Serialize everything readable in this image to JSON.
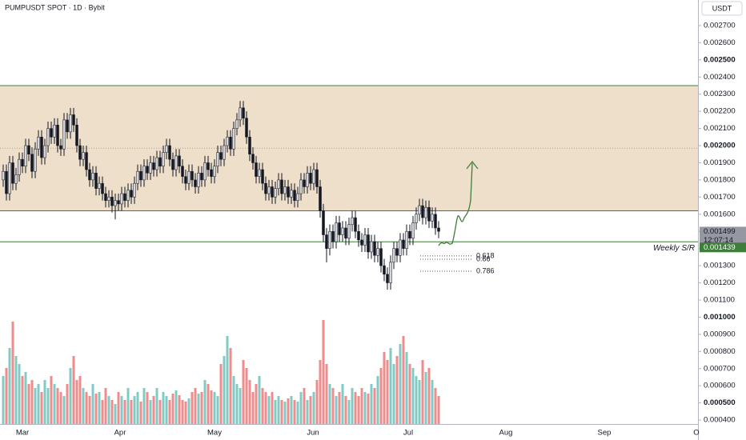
{
  "chart_data": {
    "type": "candlestick",
    "title": "PUMPUSDT SPOT · 1D · Bybit",
    "quote_label": "USDT",
    "open": [
      0.0018,
      0.00185,
      0.00172,
      0.0019,
      0.00178,
      0.00183,
      0.00192,
      0.00188,
      0.002,
      0.00195,
      0.00185,
      0.00198,
      0.00205,
      0.00193,
      0.002,
      0.0021,
      0.00205,
      0.00212,
      0.002,
      0.00198,
      0.00215,
      0.00208,
      0.00218,
      0.00212,
      0.002,
      0.00192,
      0.00196,
      0.00186,
      0.0018,
      0.00184,
      0.00175,
      0.00178,
      0.00172,
      0.00168,
      0.0017,
      0.00165,
      0.00168,
      0.00166,
      0.00172,
      0.00168,
      0.00174,
      0.0017,
      0.00178,
      0.00185,
      0.0018,
      0.00188,
      0.00184,
      0.0019,
      0.00186,
      0.00193,
      0.00188,
      0.00196,
      0.002,
      0.00192,
      0.00186,
      0.00194,
      0.00188,
      0.00182,
      0.00178,
      0.00185,
      0.0018,
      0.00176,
      0.00184,
      0.0018,
      0.0019,
      0.00186,
      0.00182,
      0.00188,
      0.00196,
      0.00192,
      0.002,
      0.00205,
      0.00198,
      0.0021,
      0.00215,
      0.00222,
      0.00216,
      0.00205,
      0.00195,
      0.0019,
      0.00182,
      0.00186,
      0.00178,
      0.00172,
      0.00176,
      0.0017,
      0.00175,
      0.0018,
      0.00172,
      0.00176,
      0.0017,
      0.00174,
      0.00168,
      0.00172,
      0.0018,
      0.00176,
      0.00184,
      0.00178,
      0.00186,
      0.00176,
      0.00162,
      0.00148,
      0.0014,
      0.0015,
      0.00144,
      0.00155,
      0.00148,
      0.00152,
      0.00146,
      0.00154,
      0.00158,
      0.0015,
      0.00145,
      0.00142,
      0.00148,
      0.00138,
      0.00144,
      0.00136,
      0.0014,
      0.0013,
      0.00125,
      0.0012,
      0.00132,
      0.0014,
      0.00136,
      0.00145,
      0.0014,
      0.0015,
      0.00146,
      0.00155,
      0.0016,
      0.00165,
      0.00158,
      0.00164,
      0.00156,
      0.0016,
      0.00152
    ],
    "high": [
      0.00189,
      0.00189,
      0.00194,
      0.00194,
      0.00187,
      0.00196,
      0.00196,
      0.00204,
      0.00204,
      0.00199,
      0.00202,
      0.00209,
      0.00209,
      0.00204,
      0.00214,
      0.00214,
      0.00216,
      0.00216,
      0.00204,
      0.00219,
      0.00219,
      0.00222,
      0.00222,
      0.00216,
      0.00204,
      0.002,
      0.002,
      0.0019,
      0.00188,
      0.00188,
      0.00182,
      0.00182,
      0.00176,
      0.00174,
      0.00174,
      0.00172,
      0.00172,
      0.00176,
      0.00176,
      0.00178,
      0.00178,
      0.00182,
      0.00189,
      0.00189,
      0.00192,
      0.00192,
      0.00194,
      0.00194,
      0.00197,
      0.00197,
      0.002,
      0.00204,
      0.00204,
      0.00196,
      0.00198,
      0.00198,
      0.00192,
      0.00186,
      0.00189,
      0.00189,
      0.00184,
      0.00188,
      0.00188,
      0.00194,
      0.00194,
      0.0019,
      0.00192,
      0.002,
      0.002,
      0.00204,
      0.00209,
      0.00209,
      0.00214,
      0.00219,
      0.00226,
      0.00226,
      0.0022,
      0.00209,
      0.00199,
      0.00194,
      0.0019,
      0.0019,
      0.00182,
      0.0018,
      0.0018,
      0.00179,
      0.00184,
      0.00184,
      0.0018,
      0.0018,
      0.00178,
      0.00178,
      0.00176,
      0.00184,
      0.00184,
      0.00188,
      0.00188,
      0.0019,
      0.0019,
      0.0018,
      0.00166,
      0.00152,
      0.00154,
      0.00154,
      0.00159,
      0.00159,
      0.00156,
      0.00156,
      0.00158,
      0.00162,
      0.00162,
      0.00154,
      0.00149,
      0.00152,
      0.00152,
      0.00148,
      0.00148,
      0.00144,
      0.00144,
      0.00134,
      0.00129,
      0.00136,
      0.00144,
      0.00144,
      0.00149,
      0.00149,
      0.00154,
      0.00154,
      0.00159,
      0.00164,
      0.00169,
      0.00169,
      0.00168,
      0.00168,
      0.00164,
      0.00164,
      0.00156
    ],
    "low": [
      0.00176,
      0.00168,
      0.00168,
      0.00174,
      0.00174,
      0.00179,
      0.00184,
      0.00184,
      0.00191,
      0.00181,
      0.00181,
      0.00194,
      0.00189,
      0.00189,
      0.00196,
      0.00201,
      0.00201,
      0.00196,
      0.00194,
      0.00194,
      0.00204,
      0.00204,
      0.00208,
      0.00196,
      0.00188,
      0.00188,
      0.00182,
      0.00176,
      0.00176,
      0.00171,
      0.00171,
      0.00168,
      0.00164,
      0.00164,
      0.00161,
      0.00157,
      0.00162,
      0.00162,
      0.00164,
      0.00164,
      0.00166,
      0.00166,
      0.00174,
      0.00176,
      0.00176,
      0.0018,
      0.0018,
      0.00182,
      0.00182,
      0.00184,
      0.00184,
      0.00192,
      0.00188,
      0.00182,
      0.00182,
      0.00184,
      0.00178,
      0.00174,
      0.00174,
      0.00176,
      0.00172,
      0.00172,
      0.00176,
      0.00176,
      0.00182,
      0.00178,
      0.00178,
      0.00184,
      0.00188,
      0.00188,
      0.00196,
      0.00194,
      0.00194,
      0.00206,
      0.00211,
      0.00212,
      0.00201,
      0.00191,
      0.00186,
      0.00178,
      0.00178,
      0.00174,
      0.00168,
      0.00168,
      0.00166,
      0.00166,
      0.00171,
      0.00168,
      0.00168,
      0.00166,
      0.00166,
      0.00164,
      0.00164,
      0.00168,
      0.00172,
      0.00172,
      0.00174,
      0.00174,
      0.00172,
      0.00158,
      0.00144,
      0.00132,
      0.00136,
      0.0014,
      0.0014,
      0.00144,
      0.00144,
      0.00142,
      0.00142,
      0.0015,
      0.00146,
      0.00141,
      0.00138,
      0.00138,
      0.00134,
      0.00134,
      0.00132,
      0.00132,
      0.00126,
      0.00121,
      0.00116,
      0.00116,
      0.00128,
      0.00132,
      0.00132,
      0.00136,
      0.00136,
      0.00142,
      0.00142,
      0.00151,
      0.00156,
      0.00154,
      0.00154,
      0.00152,
      0.00152,
      0.00148,
      0.00146
    ],
    "close": [
      0.00185,
      0.00172,
      0.0019,
      0.00178,
      0.00183,
      0.00192,
      0.00188,
      0.002,
      0.00195,
      0.00185,
      0.00198,
      0.00205,
      0.00193,
      0.002,
      0.0021,
      0.00205,
      0.00212,
      0.002,
      0.00198,
      0.00215,
      0.00208,
      0.00218,
      0.00212,
      0.002,
      0.00192,
      0.00196,
      0.00186,
      0.0018,
      0.00184,
      0.00175,
      0.00178,
      0.00172,
      0.00168,
      0.0017,
      0.00165,
      0.00168,
      0.00166,
      0.00172,
      0.00168,
      0.00174,
      0.0017,
      0.00178,
      0.00185,
      0.0018,
      0.00188,
      0.00184,
      0.0019,
      0.00186,
      0.00193,
      0.00188,
      0.00196,
      0.002,
      0.00192,
      0.00186,
      0.00194,
      0.00188,
      0.00182,
      0.00178,
      0.00185,
      0.0018,
      0.00176,
      0.00184,
      0.0018,
      0.0019,
      0.00186,
      0.00182,
      0.00188,
      0.00196,
      0.00192,
      0.002,
      0.00205,
      0.00198,
      0.0021,
      0.00215,
      0.00222,
      0.00216,
      0.00205,
      0.00195,
      0.0019,
      0.00182,
      0.00186,
      0.00178,
      0.00172,
      0.00176,
      0.0017,
      0.00175,
      0.0018,
      0.00172,
      0.00176,
      0.0017,
      0.00174,
      0.00168,
      0.00172,
      0.0018,
      0.00176,
      0.00184,
      0.00178,
      0.00186,
      0.00176,
      0.00162,
      0.00148,
      0.0014,
      0.0015,
      0.00144,
      0.00155,
      0.00148,
      0.00152,
      0.00146,
      0.00154,
      0.00158,
      0.0015,
      0.00145,
      0.00142,
      0.00148,
      0.00138,
      0.00144,
      0.00136,
      0.0014,
      0.0013,
      0.00125,
      0.0012,
      0.00132,
      0.0014,
      0.00136,
      0.00145,
      0.0014,
      0.0015,
      0.00146,
      0.00155,
      0.0016,
      0.00165,
      0.00158,
      0.00164,
      0.00156,
      0.0016,
      0.00152,
      0.0015
    ],
    "volume": [
      60,
      70,
      95,
      128,
      85,
      75,
      60,
      65,
      50,
      55,
      45,
      50,
      40,
      55,
      45,
      60,
      50,
      45,
      40,
      35,
      50,
      70,
      85,
      55,
      60,
      45,
      40,
      35,
      50,
      38,
      40,
      30,
      45,
      35,
      30,
      25,
      40,
      35,
      30,
      45,
      30,
      35,
      40,
      28,
      45,
      40,
      30,
      35,
      45,
      30,
      40,
      35,
      30,
      38,
      42,
      36,
      30,
      28,
      32,
      40,
      45,
      38,
      40,
      55,
      50,
      42,
      40,
      35,
      75,
      85,
      110,
      95,
      60,
      50,
      45,
      80,
      70,
      55,
      40,
      50,
      60,
      45,
      40,
      35,
      40,
      30,
      35,
      30,
      28,
      32,
      35,
      30,
      28,
      40,
      45,
      30,
      35,
      40,
      55,
      80,
      130,
      75,
      50,
      45,
      35,
      40,
      50,
      35,
      30,
      45,
      40,
      35,
      45,
      40,
      38,
      50,
      45,
      60,
      70,
      90,
      80,
      95,
      75,
      85,
      100,
      110,
      90,
      75,
      70,
      60,
      55,
      80,
      65,
      70,
      55,
      45,
      35
    ],
    "colors": {
      "up": "#d4d6dc",
      "down": "#131722",
      "volume_up": "#80cbc4",
      "volume_down": "#f08c8c",
      "zone": "#e3c9a6",
      "line": "#3f7d3a"
    },
    "ylim": [
      0.000377,
      0.002849
    ],
    "yticks": [
      {
        "value": 0.0004,
        "label": "0.000400"
      },
      {
        "value": 0.0005,
        "label": "0.000500"
      },
      {
        "value": 0.0006,
        "label": "0.000600"
      },
      {
        "value": 0.0007,
        "label": "0.000700"
      },
      {
        "value": 0.0008,
        "label": "0.000800"
      },
      {
        "value": 0.0009,
        "label": "0.000900"
      },
      {
        "value": 0.001,
        "label": "0.001000"
      },
      {
        "value": 0.0011,
        "label": "0.001100"
      },
      {
        "value": 0.0012,
        "label": "0.001200"
      },
      {
        "value": 0.0013,
        "label": "0.001300"
      },
      {
        "value": 0.0014,
        "label": "0.001400"
      },
      {
        "value": 0.0015,
        "label": "0.001500"
      },
      {
        "value": 0.0016,
        "label": "0.001600"
      },
      {
        "value": 0.0017,
        "label": "0.001700"
      },
      {
        "value": 0.0018,
        "label": "0.001800"
      },
      {
        "value": 0.0019,
        "label": "0.001900"
      },
      {
        "value": 0.002,
        "label": "0.002000"
      },
      {
        "value": 0.0021,
        "label": "0.002100"
      },
      {
        "value": 0.0022,
        "label": "0.002200"
      },
      {
        "value": 0.0023,
        "label": "0.002300"
      },
      {
        "value": 0.0024,
        "label": "0.002400"
      },
      {
        "value": 0.0025,
        "label": "0.002500"
      },
      {
        "value": 0.0026,
        "label": "0.002600"
      },
      {
        "value": 0.0027,
        "label": "0.002700"
      }
    ],
    "x_labels": [
      "Mar",
      "Apr",
      "May",
      "Jun",
      "Jul",
      "Aug",
      "Sep",
      "O"
    ],
    "zone": {
      "top": 0.00235,
      "bottom": 0.00162
    },
    "support": {
      "label": "Weekly S/R",
      "value": 0.001439,
      "value_label": "0.001439"
    },
    "last_price": {
      "value": 0.001499,
      "value_label": "0.001499",
      "countdown": "12:07:14"
    },
    "fib_levels": [
      {
        "label": "0.618",
        "value": 0.001357
      },
      {
        "label": "0.66",
        "value": 0.001338
      },
      {
        "label": "0.786",
        "value": 0.001268
      }
    ]
  }
}
